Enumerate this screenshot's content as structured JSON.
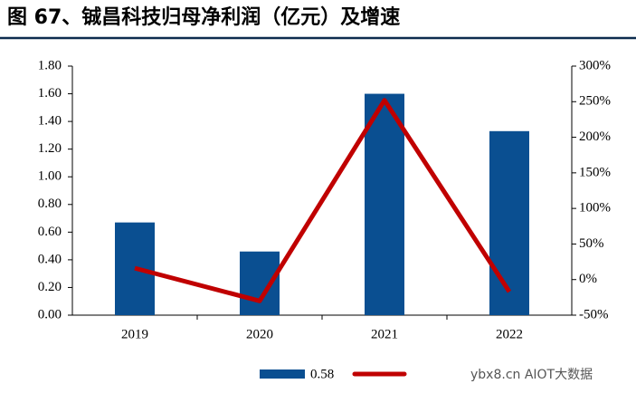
{
  "chart_data": {
    "type": "bar-line",
    "title": "图 67、铖昌科技归母净利润（亿元）及增速",
    "categories": [
      "2019",
      "2020",
      "2021",
      "2022"
    ],
    "series": [
      {
        "name": "0.58",
        "type": "bar",
        "color": "#0a4f91",
        "values": [
          0.67,
          0.46,
          1.6,
          1.33
        ]
      },
      {
        "type": "line",
        "axis": "y2",
        "color": "#c00000",
        "values": [
          16,
          -30,
          252,
          -17
        ]
      }
    ],
    "ylim": [
      0,
      1.8
    ],
    "yticks": [
      {
        "value": 0,
        "label": "0.00"
      },
      {
        "value": 0.2,
        "label": "0.20"
      },
      {
        "value": 0.4,
        "label": "0.40"
      },
      {
        "value": 0.6,
        "label": "0.60"
      },
      {
        "value": 0.8,
        "label": "0.80"
      },
      {
        "value": 1.0,
        "label": "1.00"
      },
      {
        "value": 1.2,
        "label": "1.20"
      },
      {
        "value": 1.4,
        "label": "1.40"
      },
      {
        "value": 1.6,
        "label": "1.60"
      },
      {
        "value": 1.8,
        "label": "1.80"
      }
    ],
    "y2lim": [
      -50,
      300
    ],
    "y2ticks": [
      {
        "value": -50,
        "label": "-50%"
      },
      {
        "value": 0,
        "label": "0%"
      },
      {
        "value": 50,
        "label": "50%"
      },
      {
        "value": 100,
        "label": "100%"
      },
      {
        "value": 150,
        "label": "150%"
      },
      {
        "value": 200,
        "label": "200%"
      },
      {
        "value": 250,
        "label": "250%"
      },
      {
        "value": 300,
        "label": "300%"
      }
    ],
    "watermark": "ybx8.cn AIOT大数据"
  }
}
